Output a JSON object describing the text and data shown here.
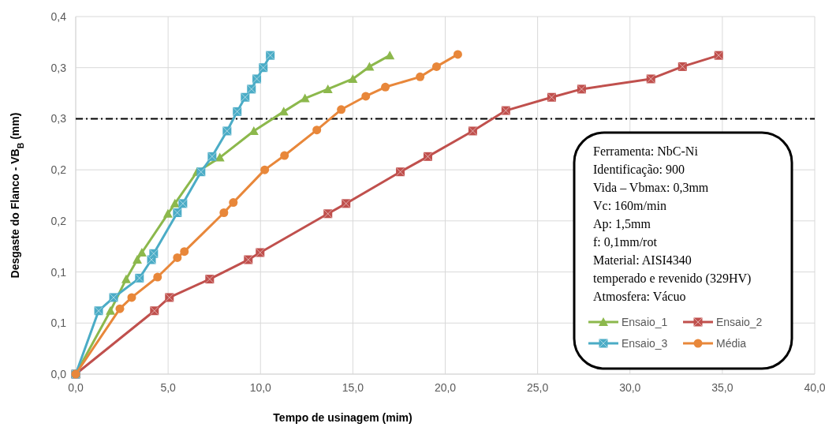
{
  "chart_data": {
    "type": "line",
    "xlabel": "Tempo de usinagem (mim)",
    "ylabel": "Desgaste do Flanco - VB$_{B}$ (mm)",
    "xlim": [
      0,
      40
    ],
    "ylim": [
      0,
      0.35
    ],
    "xticks": [
      {
        "value": 0,
        "label": "0,0"
      },
      {
        "value": 5,
        "label": "5,0"
      },
      {
        "value": 10,
        "label": "10,0"
      },
      {
        "value": 15,
        "label": "15,0"
      },
      {
        "value": 20,
        "label": "20,0"
      },
      {
        "value": 25,
        "label": "25,0"
      },
      {
        "value": 30,
        "label": "30,0"
      },
      {
        "value": 35,
        "label": "35,0"
      },
      {
        "value": 40,
        "label": "40,0"
      }
    ],
    "yticks": [
      {
        "value": 0,
        "label": "0,0"
      },
      {
        "value": 0.05,
        "label": "0,1"
      },
      {
        "value": 0.1,
        "label": "0,1"
      },
      {
        "value": 0.15,
        "label": "0,2"
      },
      {
        "value": 0.2,
        "label": "0,2"
      },
      {
        "value": 0.25,
        "label": "0,3"
      },
      {
        "value": 0.3,
        "label": "0,3"
      },
      {
        "value": 0.35,
        "label": "0,4"
      }
    ],
    "grid": true,
    "legend": "bottom right",
    "series": [
      {
        "name": "Ensaio_1",
        "color": "#8cb84c",
        "marker": "triangle",
        "x": [
          0,
          1.88,
          2.73,
          3.33,
          3.58,
          4.99,
          5.37,
          6.57,
          7.8,
          9.64,
          11.26,
          12.41,
          13.65,
          15.0,
          15.9,
          17.0
        ],
        "values": [
          0,
          0.062,
          0.093,
          0.112,
          0.119,
          0.157,
          0.167,
          0.198,
          0.212,
          0.238,
          0.257,
          0.27,
          0.279,
          0.289,
          0.301,
          0.312
        ]
      },
      {
        "name": "Ensaio_2",
        "color": "#c0504d",
        "marker": "square",
        "x": [
          0,
          4.26,
          5.07,
          7.25,
          9.34,
          9.98,
          13.65,
          14.63,
          17.57,
          19.06,
          21.49,
          23.28,
          25.76,
          27.38,
          31.13,
          32.84,
          34.8
        ],
        "values": [
          0,
          0.062,
          0.075,
          0.093,
          0.112,
          0.119,
          0.157,
          0.167,
          0.198,
          0.213,
          0.238,
          0.258,
          0.271,
          0.279,
          0.289,
          0.301,
          0.312
        ]
      },
      {
        "name": "Ensaio_3",
        "color": "#4bacc6",
        "marker": "square",
        "x": [
          0,
          1.24,
          2.05,
          3.45,
          4.1,
          4.22,
          5.5,
          5.8,
          6.78,
          7.38,
          8.19,
          8.74,
          9.17,
          9.51,
          9.8,
          10.15,
          10.53
        ],
        "values": [
          0,
          0.062,
          0.075,
          0.094,
          0.112,
          0.118,
          0.158,
          0.167,
          0.198,
          0.213,
          0.238,
          0.257,
          0.271,
          0.279,
          0.289,
          0.3,
          0.312
        ]
      },
      {
        "name": "Média",
        "color": "#e8873a",
        "marker": "circle",
        "x": [
          0,
          2.39,
          3.03,
          4.43,
          5.5,
          5.88,
          8.02,
          8.53,
          10.23,
          11.3,
          13.05,
          14.37,
          15.7,
          16.76,
          18.64,
          19.53,
          20.68
        ],
        "values": [
          0,
          0.064,
          0.075,
          0.095,
          0.114,
          0.12,
          0.158,
          0.168,
          0.2,
          0.214,
          0.239,
          0.259,
          0.272,
          0.281,
          0.291,
          0.301,
          0.313
        ]
      }
    ],
    "ref_lines": [
      {
        "axis": "y",
        "value": 0.25,
        "color": "#000000",
        "line_style": "dashed"
      }
    ],
    "annotations": [
      "Ferramenta:  NbC-Ni",
      "Identificação:  900",
      "Vida – Vbmax: 0,3mm",
      "Vc: 160m/min",
      "Ap: 1,5mm",
      "f: 0,1mm/rot",
      "Material: AISI4340",
      "temperado e revenido (329HV)",
      "Atmosfera: Vácuo"
    ]
  }
}
